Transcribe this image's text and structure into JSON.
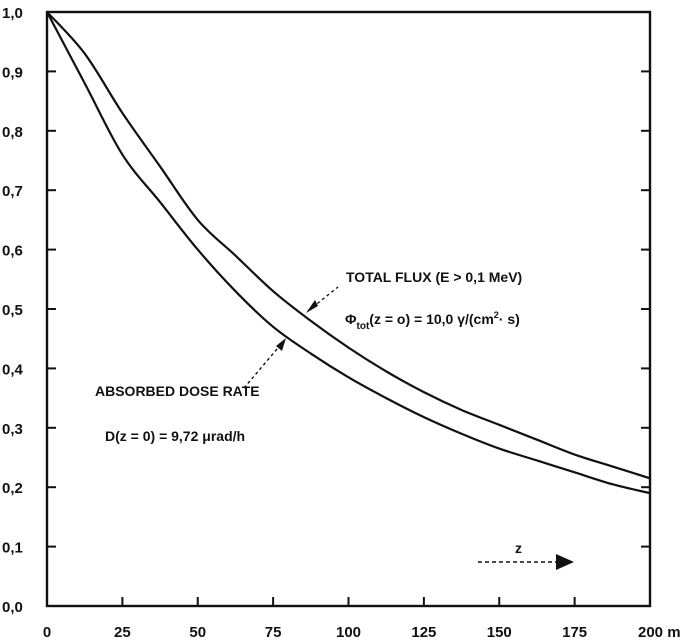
{
  "chart_data": {
    "type": "line",
    "x_ticks": [
      0,
      25,
      50,
      75,
      100,
      125,
      150,
      175,
      200
    ],
    "x_tick_labels": [
      "0",
      "25",
      "50",
      "75",
      "100",
      "125",
      "150",
      "175",
      "200 m"
    ],
    "y_ticks": [
      0.0,
      0.1,
      0.2,
      0.3,
      0.4,
      0.5,
      0.6,
      0.7,
      0.8,
      0.9,
      1.0
    ],
    "y_tick_labels": [
      "0,0",
      "0,1",
      "0,2",
      "0,3",
      "0,4",
      "0,5",
      "0,6",
      "0,7",
      "0,8",
      "0,9",
      "1,0"
    ],
    "xlim": [
      0,
      200
    ],
    "ylim": [
      0,
      1.0
    ],
    "grid": false,
    "series": [
      {
        "name": "TOTAL FLUX (E > 0,1 MeV)",
        "x": [
          0,
          12.5,
          25,
          37.5,
          50,
          62.5,
          75,
          87.5,
          100,
          112.5,
          125,
          137.5,
          150,
          162.5,
          175,
          187.5,
          200
        ],
        "y": [
          1.0,
          0.93,
          0.83,
          0.74,
          0.65,
          0.59,
          0.53,
          0.48,
          0.435,
          0.395,
          0.36,
          0.33,
          0.305,
          0.28,
          0.255,
          0.235,
          0.215
        ]
      },
      {
        "name": "ABSORBED DOSE RATE",
        "x": [
          0,
          12.5,
          25,
          37.5,
          50,
          62.5,
          75,
          87.5,
          100,
          112.5,
          125,
          137.5,
          150,
          162.5,
          175,
          187.5,
          200
        ],
        "y": [
          1.0,
          0.88,
          0.76,
          0.68,
          0.6,
          0.53,
          0.47,
          0.425,
          0.385,
          0.35,
          0.318,
          0.29,
          0.265,
          0.245,
          0.225,
          0.205,
          0.19
        ]
      }
    ],
    "annotations": {
      "flux_title": "TOTAL FLUX (E > 0,1 MeV)",
      "flux_symbol": "Φ",
      "flux_subscript": "tot",
      "flux_eq_left": "(z = o) = 10,0 γ/(cm",
      "flux_superscript": "2",
      "flux_eq_right": "· s)",
      "dose_title": "ABSORBED DOSE RATE",
      "dose_formula": "D(z = 0) = 9,72 μrad/h",
      "z_label": "z"
    }
  }
}
